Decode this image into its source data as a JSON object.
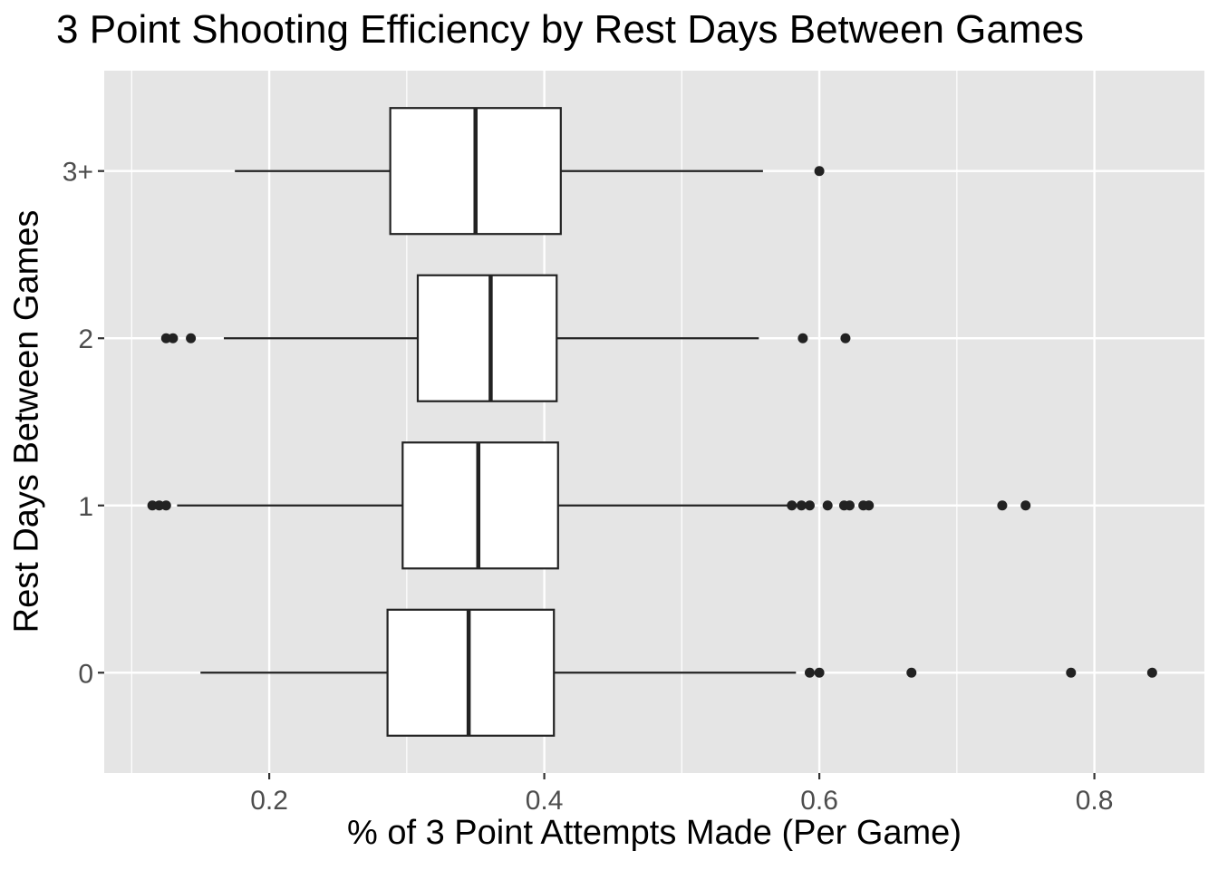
{
  "chart_data": {
    "type": "boxplot",
    "orientation": "horizontal",
    "title": "3 Point Shooting Efficiency by Rest Days Between Games",
    "xlabel": "% of 3 Point Attempts Made (Per Game)",
    "ylabel": "Rest Days Between Games",
    "xlim": [
      0.08,
      0.88
    ],
    "x_ticks": [
      {
        "value": 0.2,
        "label": "0.2"
      },
      {
        "value": 0.4,
        "label": "0.4"
      },
      {
        "value": 0.6,
        "label": "0.6"
      },
      {
        "value": 0.8,
        "label": "0.8"
      }
    ],
    "x_minor_ticks": [
      0.1,
      0.3,
      0.5,
      0.7
    ],
    "categories": [
      "0",
      "1",
      "2",
      "3+"
    ],
    "boxes": [
      {
        "category": "0",
        "whisker_low": 0.15,
        "q1": 0.286,
        "median": 0.345,
        "q3": 0.407,
        "whisker_high": 0.583,
        "outliers": [
          0.593,
          0.6,
          0.667,
          0.783,
          0.842
        ]
      },
      {
        "category": "1",
        "whisker_low": 0.133,
        "q1": 0.297,
        "median": 0.352,
        "q3": 0.41,
        "whisker_high": 0.58,
        "outliers": [
          0.115,
          0.12,
          0.125,
          0.58,
          0.587,
          0.593,
          0.606,
          0.618,
          0.622,
          0.632,
          0.636,
          0.733,
          0.75
        ]
      },
      {
        "category": "2",
        "whisker_low": 0.167,
        "q1": 0.308,
        "median": 0.361,
        "q3": 0.409,
        "whisker_high": 0.556,
        "outliers": [
          0.125,
          0.13,
          0.143,
          0.588,
          0.619
        ]
      },
      {
        "category": "3+",
        "whisker_low": 0.175,
        "q1": 0.288,
        "median": 0.35,
        "q3": 0.412,
        "whisker_high": 0.559,
        "outliers": [
          0.6
        ]
      }
    ],
    "grid": true,
    "panel_background": "#e5e5e5",
    "grid_color": "#ffffff",
    "box_fill": "#ffffff",
    "line_color": "#222222",
    "point_color": "#222222"
  }
}
